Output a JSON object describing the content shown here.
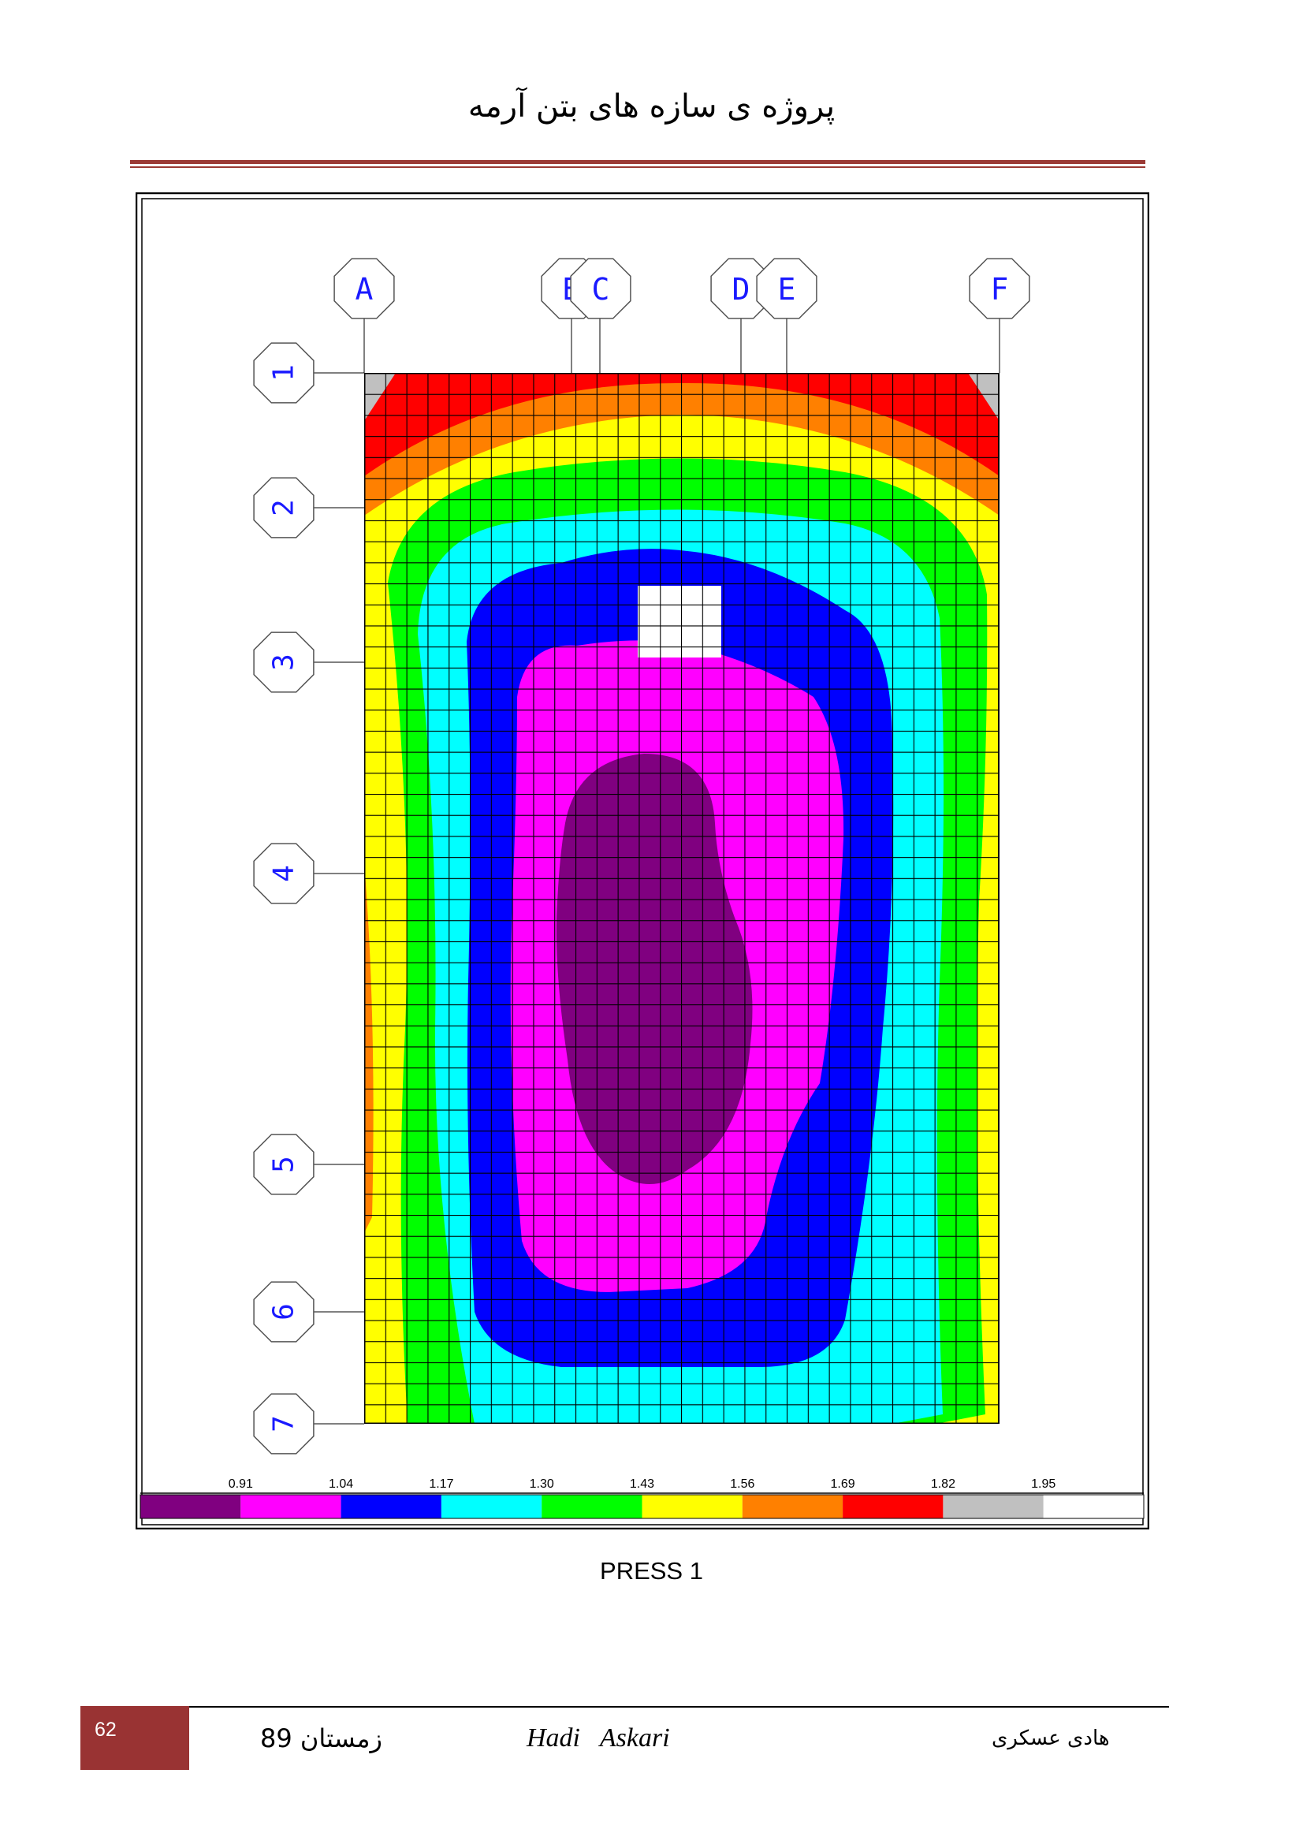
{
  "header": {
    "title": "پروژه ی سازه های بتن آرمه"
  },
  "figure": {
    "column_grid_labels": [
      "A",
      "B",
      "C",
      "D",
      "E",
      "F"
    ],
    "row_grid_labels": [
      "1",
      "2",
      "3",
      "4",
      "5",
      "6",
      "7"
    ],
    "legend": {
      "values": [
        "0.91",
        "1.04",
        "1.17",
        "1.30",
        "1.43",
        "1.56",
        "1.69",
        "1.82",
        "1.95"
      ],
      "colors": [
        "#800080",
        "#ff00ff",
        "#0000ff",
        "#00ffff",
        "#00ff00",
        "#ffff00",
        "#ff8000",
        "#ff0000",
        "#c0c0c0",
        "#ffffff"
      ]
    },
    "caption": "PRESS 1"
  },
  "footer": {
    "page_number": "62",
    "season": "زمستان 89",
    "author_en": "Hadi   Askari",
    "author_fa": "هادی عسکری"
  }
}
